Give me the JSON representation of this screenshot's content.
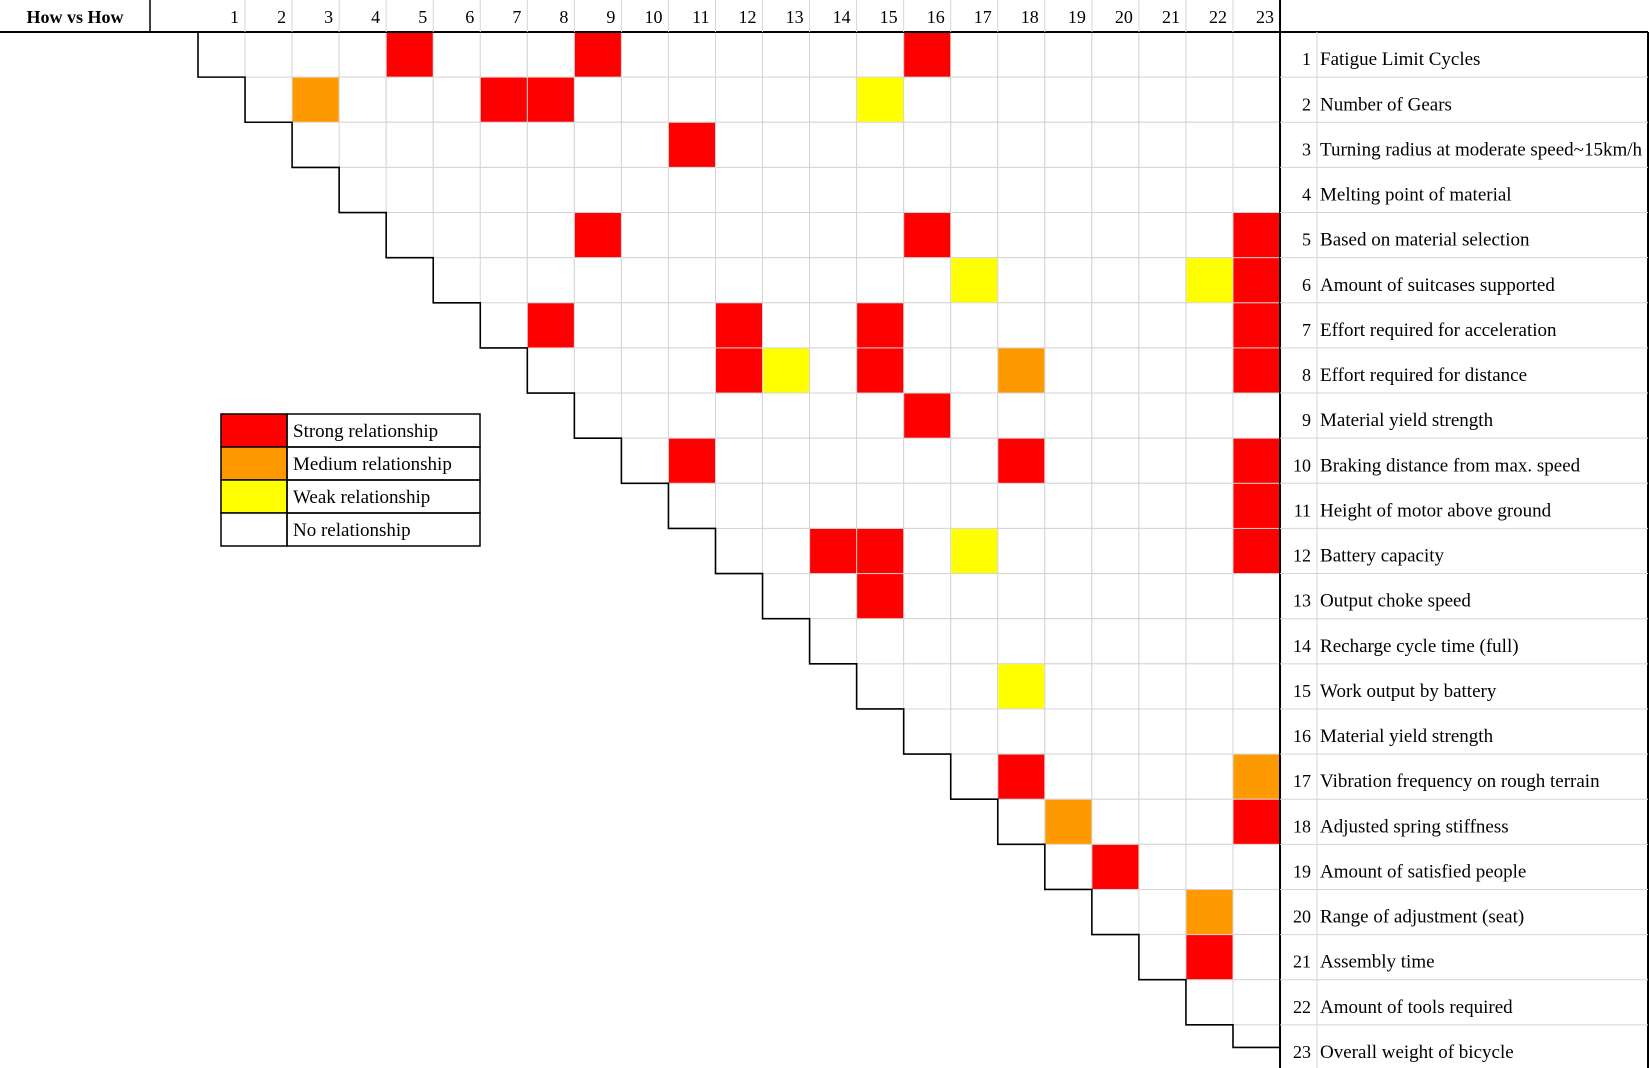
{
  "chart_data": {
    "type": "heatmap",
    "title": "How vs How",
    "n": 23,
    "column_labels": [
      "1",
      "2",
      "3",
      "4",
      "5",
      "6",
      "7",
      "8",
      "9",
      "10",
      "11",
      "12",
      "13",
      "14",
      "15",
      "16",
      "17",
      "18",
      "19",
      "20",
      "21",
      "22",
      "23"
    ],
    "row_labels": [
      "Fatigue Limit Cycles",
      "Number of Gears",
      "Turning radius at moderate speed~15km/h",
      "Melting point of material",
      "Based on material selection",
      "Amount of suitcases supported",
      "Effort required for acceleration",
      "Effort required for distance",
      "Material yield strength",
      "Braking distance from max. speed",
      "Height of motor above ground",
      "Battery capacity",
      "Output choke speed",
      "Recharge cycle time (full)",
      "Work output by battery",
      "Material yield strength",
      "Vibration frequency on rough terrain",
      "Adjusted spring stiffness",
      "Amount of satisfied people",
      "Range of adjustment (seat)",
      "Assembly time",
      "Amount of tools required",
      "Overall weight of bicycle"
    ],
    "levels": {
      "strong": "#ff0000",
      "medium": "#ff9900",
      "weak": "#ffff00",
      "none": "#ffffff"
    },
    "legend": [
      {
        "key": "strong",
        "label": "Strong relationship"
      },
      {
        "key": "medium",
        "label": "Medium relationship"
      },
      {
        "key": "weak",
        "label": "Weak relationship"
      },
      {
        "key": "none",
        "label": "No relationship"
      }
    ],
    "cells": [
      {
        "row": 1,
        "col": 5,
        "level": "strong"
      },
      {
        "row": 1,
        "col": 9,
        "level": "strong"
      },
      {
        "row": 1,
        "col": 16,
        "level": "strong"
      },
      {
        "row": 2,
        "col": 3,
        "level": "medium"
      },
      {
        "row": 2,
        "col": 7,
        "level": "strong"
      },
      {
        "row": 2,
        "col": 8,
        "level": "strong"
      },
      {
        "row": 2,
        "col": 15,
        "level": "weak"
      },
      {
        "row": 3,
        "col": 11,
        "level": "strong"
      },
      {
        "row": 5,
        "col": 9,
        "level": "strong"
      },
      {
        "row": 5,
        "col": 16,
        "level": "strong"
      },
      {
        "row": 5,
        "col": 23,
        "level": "strong"
      },
      {
        "row": 6,
        "col": 17,
        "level": "weak"
      },
      {
        "row": 6,
        "col": 22,
        "level": "weak"
      },
      {
        "row": 6,
        "col": 23,
        "level": "strong"
      },
      {
        "row": 7,
        "col": 8,
        "level": "strong"
      },
      {
        "row": 7,
        "col": 12,
        "level": "strong"
      },
      {
        "row": 7,
        "col": 15,
        "level": "strong"
      },
      {
        "row": 7,
        "col": 23,
        "level": "strong"
      },
      {
        "row": 8,
        "col": 12,
        "level": "strong"
      },
      {
        "row": 8,
        "col": 13,
        "level": "weak"
      },
      {
        "row": 8,
        "col": 15,
        "level": "strong"
      },
      {
        "row": 8,
        "col": 18,
        "level": "medium"
      },
      {
        "row": 8,
        "col": 23,
        "level": "strong"
      },
      {
        "row": 9,
        "col": 16,
        "level": "strong"
      },
      {
        "row": 10,
        "col": 11,
        "level": "strong"
      },
      {
        "row": 10,
        "col": 18,
        "level": "strong"
      },
      {
        "row": 10,
        "col": 23,
        "level": "strong"
      },
      {
        "row": 11,
        "col": 23,
        "level": "strong"
      },
      {
        "row": 12,
        "col": 14,
        "level": "strong"
      },
      {
        "row": 12,
        "col": 15,
        "level": "strong"
      },
      {
        "row": 12,
        "col": 17,
        "level": "weak"
      },
      {
        "row": 12,
        "col": 23,
        "level": "strong"
      },
      {
        "row": 13,
        "col": 15,
        "level": "strong"
      },
      {
        "row": 15,
        "col": 18,
        "level": "weak"
      },
      {
        "row": 17,
        "col": 18,
        "level": "strong"
      },
      {
        "row": 17,
        "col": 23,
        "level": "medium"
      },
      {
        "row": 18,
        "col": 19,
        "level": "medium"
      },
      {
        "row": 18,
        "col": 23,
        "level": "strong"
      },
      {
        "row": 19,
        "col": 20,
        "level": "strong"
      },
      {
        "row": 20,
        "col": 22,
        "level": "medium"
      },
      {
        "row": 21,
        "col": 22,
        "level": "strong"
      }
    ],
    "grid": true
  }
}
